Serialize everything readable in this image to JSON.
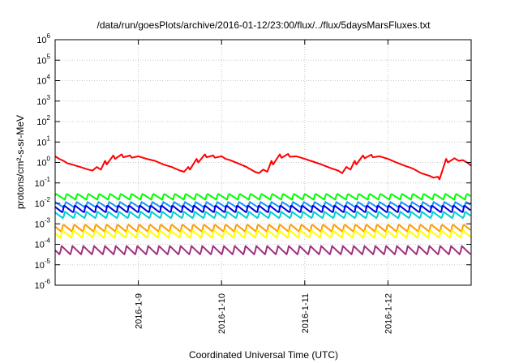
{
  "chart_data": {
    "type": "line",
    "title": "/data/run/goesPlots/archive/2016-01-12/23:00/flux/../flux/5daysMarsFluxes.txt",
    "xlabel": "Coordinated Universal Time (UTC)",
    "ylabel": "protons/cm²-s-sr-MeV",
    "yscale": "log",
    "ylim": [
      1e-06,
      1000000.0
    ],
    "xlim": [
      0,
      5
    ],
    "grid": true,
    "legend": "none",
    "x_ticks": [
      {
        "x": 1,
        "label": "2016-1-9"
      },
      {
        "x": 2,
        "label": "2016-1-10"
      },
      {
        "x": 3,
        "label": "2016-1-11"
      },
      {
        "x": 4,
        "label": "2016-1-12"
      }
    ],
    "y_tick_exponents": [
      -6,
      -5,
      -4,
      -3,
      -2,
      -1,
      0,
      1,
      2,
      3,
      4,
      5,
      6
    ],
    "series": [
      {
        "color": "#ff0000",
        "x": [
          0,
          0.05,
          0.1,
          0.15,
          0.2,
          0.3,
          0.4,
          0.45,
          0.5,
          0.55,
          0.6,
          0.62,
          0.7,
          0.72,
          0.8,
          0.82,
          0.9,
          0.92,
          1.0,
          1.1,
          1.2,
          1.3,
          1.4,
          1.5,
          1.55,
          1.6,
          1.62,
          1.7,
          1.72,
          1.8,
          1.82,
          1.9,
          1.92,
          2.0,
          2.05,
          2.1,
          2.2,
          2.3,
          2.4,
          2.45,
          2.5,
          2.55,
          2.6,
          2.62,
          2.7,
          2.72,
          2.8,
          2.82,
          2.9,
          3.0,
          3.1,
          3.2,
          3.3,
          3.4,
          3.45,
          3.5,
          3.55,
          3.6,
          3.62,
          3.7,
          3.72,
          3.8,
          3.82,
          3.9,
          4.0,
          4.1,
          4.2,
          4.3,
          4.4,
          4.5,
          4.55,
          4.6,
          4.62,
          4.7,
          4.72,
          4.8,
          4.85,
          4.9,
          4.95,
          5.0
        ],
        "values": [
          2,
          1.5,
          1.2,
          0.9,
          0.8,
          0.6,
          0.45,
          0.4,
          0.6,
          0.45,
          1.2,
          0.8,
          2.2,
          1.5,
          2.5,
          1.8,
          2.2,
          1.7,
          2,
          1.5,
          1.2,
          0.8,
          0.6,
          0.4,
          0.35,
          0.6,
          0.45,
          1.5,
          1,
          2.5,
          1.8,
          2.2,
          1.7,
          2,
          1.5,
          1.3,
          0.9,
          0.6,
          0.35,
          0.3,
          0.45,
          0.35,
          1.2,
          0.8,
          2.5,
          1.7,
          2.6,
          1.9,
          2,
          1.5,
          1.1,
          0.8,
          0.55,
          0.4,
          0.3,
          0.6,
          0.45,
          1.2,
          0.8,
          2.2,
          1.6,
          2.4,
          1.8,
          2,
          1.5,
          1,
          0.7,
          0.5,
          0.3,
          0.22,
          0.18,
          0.2,
          0.15,
          1.5,
          1,
          1.6,
          1.2,
          1.3,
          1,
          0.7
        ]
      },
      {
        "color": "#00ff00",
        "base": 0.015,
        "amp": 2.0
      },
      {
        "color": "#1e90ff",
        "base": 0.006,
        "amp": 2.0
      },
      {
        "color": "#00d0d0",
        "base": 0.0018,
        "amp": 2.2
      },
      {
        "color": "#0000dd",
        "base": 0.0035,
        "amp": 2.3
      },
      {
        "color": "#ff9900",
        "base": 0.0004,
        "amp": 2.4
      },
      {
        "color": "#ffff00",
        "base": 0.0002,
        "amp": 2.5
      },
      {
        "color": "#a0307e",
        "base": 3e-05,
        "amp": 2.8
      }
    ]
  }
}
